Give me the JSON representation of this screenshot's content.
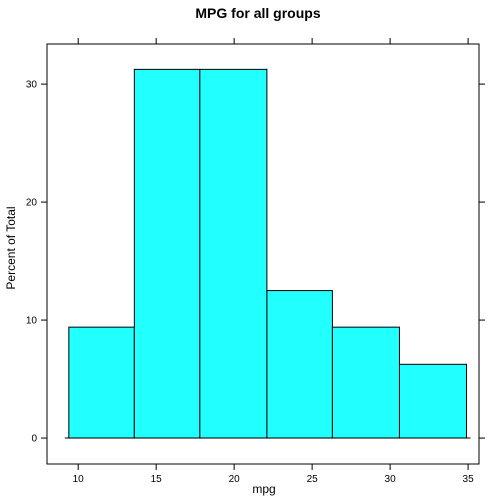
{
  "chart_data": {
    "type": "bar",
    "title": "MPG for all groups",
    "xlabel": "mpg",
    "ylabel": "Percent of Total",
    "bins": [
      {
        "from": 9.4,
        "to": 13.6,
        "value": 9.4
      },
      {
        "from": 13.6,
        "to": 17.8,
        "value": 31.25
      },
      {
        "from": 17.8,
        "to": 22.1,
        "value": 31.25
      },
      {
        "from": 22.1,
        "to": 26.3,
        "value": 12.5
      },
      {
        "from": 26.3,
        "to": 30.6,
        "value": 9.4
      },
      {
        "from": 30.6,
        "to": 34.9,
        "value": 6.25
      }
    ],
    "xlim": [
      8,
      35.7
    ],
    "ylim": [
      -2.2,
      33.4
    ],
    "xticks": [
      10,
      15,
      20,
      25,
      30,
      35
    ],
    "yticks": [
      0,
      10,
      20,
      30
    ],
    "bar_color": "#22ffff",
    "grid": false
  }
}
